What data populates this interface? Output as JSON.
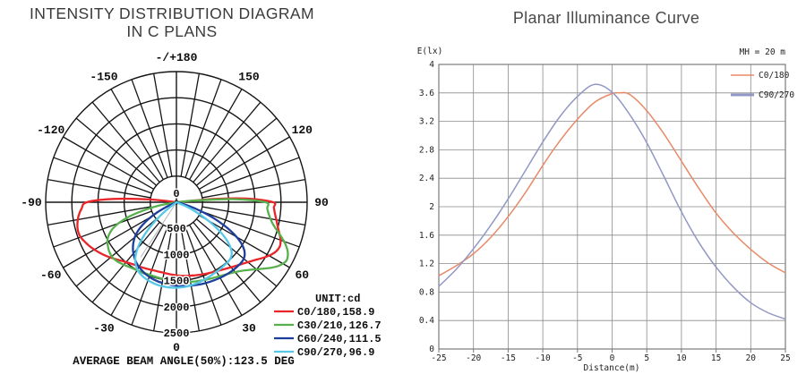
{
  "left_chart": {
    "title_line1": "INTENSITY DISTRIBUTION DIAGRAM",
    "title_line2": "IN C PLANS",
    "unit_label": "UNIT:cd",
    "average_beam_angle_label": "AVERAGE BEAM ANGLE(50%):123.5 DEG",
    "center_label": "0",
    "grid_color": "#151515"
  },
  "right_chart": {
    "grid_color": "#8a8a8a",
    "border_color": "#7a7a7a"
  },
  "chart_data": [
    {
      "type": "polar",
      "title": "INTENSITY DISTRIBUTION DIAGRAM IN C PLANS",
      "unit": "cd",
      "r_max": 2500,
      "radial_ticks": [
        0,
        500,
        1000,
        1500,
        2000,
        2500
      ],
      "angle_step_deg": 10,
      "average_beam_angle_50_deg": 123.5,
      "marker_line": {
        "angle": -33,
        "value": 1250,
        "color": "#b3b3b3"
      },
      "angle_ticks": [
        {
          "angle": 0,
          "label": "0"
        },
        {
          "angle": 30,
          "label": "30"
        },
        {
          "angle": 60,
          "label": "60"
        },
        {
          "angle": 90,
          "label": "90"
        },
        {
          "angle": 120,
          "label": "120"
        },
        {
          "angle": 150,
          "label": "150"
        },
        {
          "angle": 180,
          "label": "-/+180"
        },
        {
          "angle": -150,
          "label": "-150"
        },
        {
          "angle": -120,
          "label": "-120"
        },
        {
          "angle": -90,
          "label": "-90"
        },
        {
          "angle": -60,
          "label": "-60"
        },
        {
          "angle": -30,
          "label": "-30"
        }
      ],
      "series": [
        {
          "name": "C0/180",
          "beam_angle": "158.9",
          "color": "#e8262a",
          "points": [
            [
              -98,
              0
            ],
            [
              -96,
              500
            ],
            [
              -93,
              1200
            ],
            [
              -90,
              1712
            ],
            [
              -86,
              1820
            ],
            [
              -82,
              1890
            ],
            [
              -78,
              1935
            ],
            [
              -74,
              1960
            ],
            [
              -70,
              1950
            ],
            [
              -66,
              1900
            ],
            [
              -62,
              1845
            ],
            [
              -57,
              1765
            ],
            [
              -52,
              1680
            ],
            [
              -47,
              1595
            ],
            [
              -42,
              1520
            ],
            [
              -37,
              1465
            ],
            [
              -32,
              1430
            ],
            [
              -27,
              1405
            ],
            [
              -22,
              1385
            ],
            [
              -17,
              1372
            ],
            [
              -12,
              1370
            ],
            [
              -7,
              1378
            ],
            [
              -2,
              1392
            ],
            [
              3,
              1408
            ],
            [
              8,
              1422
            ],
            [
              13,
              1438
            ],
            [
              18,
              1458
            ],
            [
              23,
              1482
            ],
            [
              28,
              1512
            ],
            [
              33,
              1550
            ],
            [
              38,
              1600
            ],
            [
              43,
              1665
            ],
            [
              48,
              1745
            ],
            [
              53,
              1850
            ],
            [
              57,
              1960
            ],
            [
              61,
              2070
            ],
            [
              64,
              2130
            ],
            [
              67,
              2150
            ],
            [
              70,
              2120
            ],
            [
              73,
              2060
            ],
            [
              76,
              2000
            ],
            [
              80,
              1940
            ],
            [
              84,
              1890
            ],
            [
              87,
              1865
            ],
            [
              90,
              1850
            ],
            [
              93,
              1350
            ],
            [
              95,
              700
            ],
            [
              97,
              0
            ]
          ]
        },
        {
          "name": "C30/210",
          "beam_angle": "126.7",
          "color": "#56b14d",
          "points": [
            [
              -82,
              0
            ],
            [
              -79,
              350
            ],
            [
              -76,
              650
            ],
            [
              -73,
              950
            ],
            [
              -70,
              1180
            ],
            [
              -67,
              1340
            ],
            [
              -64,
              1440
            ],
            [
              -61,
              1510
            ],
            [
              -57,
              1560
            ],
            [
              -53,
              1600
            ],
            [
              -49,
              1615
            ],
            [
              -45,
              1600
            ],
            [
              -41,
              1570
            ],
            [
              -37,
              1540
            ],
            [
              -33,
              1515
            ],
            [
              -29,
              1498
            ],
            [
              -25,
              1488
            ],
            [
              -20,
              1480
            ],
            [
              -15,
              1482
            ],
            [
              -10,
              1488
            ],
            [
              -5,
              1500
            ],
            [
              0,
              1515
            ],
            [
              5,
              1530
            ],
            [
              10,
              1545
            ],
            [
              15,
              1562
            ],
            [
              20,
              1582
            ],
            [
              25,
              1605
            ],
            [
              30,
              1638
            ],
            [
              35,
              1680
            ],
            [
              40,
              1745
            ],
            [
              44,
              1820
            ],
            [
              48,
              1930
            ],
            [
              52,
              2070
            ],
            [
              55,
              2190
            ],
            [
              58,
              2300
            ],
            [
              61,
              2370
            ],
            [
              63,
              2380
            ],
            [
              66,
              2330
            ],
            [
              69,
              2230
            ],
            [
              72,
              2100
            ],
            [
              75,
              1970
            ],
            [
              78,
              1870
            ],
            [
              82,
              1790
            ],
            [
              86,
              1740
            ],
            [
              90,
              1705
            ],
            [
              93,
              1100
            ],
            [
              95,
              400
            ],
            [
              96,
              0
            ]
          ]
        },
        {
          "name": "C60/240",
          "beam_angle": "111.5",
          "color": "#1e3e9e",
          "points": [
            [
              -68,
              0
            ],
            [
              -65,
              200
            ],
            [
              -62,
              420
            ],
            [
              -59,
              620
            ],
            [
              -56,
              790
            ],
            [
              -53,
              930
            ],
            [
              -50,
              1040
            ],
            [
              -46,
              1150
            ],
            [
              -42,
              1240
            ],
            [
              -38,
              1315
            ],
            [
              -34,
              1380
            ],
            [
              -30,
              1430
            ],
            [
              -26,
              1470
            ],
            [
              -22,
              1505
            ],
            [
              -18,
              1532
            ],
            [
              -14,
              1552
            ],
            [
              -10,
              1568
            ],
            [
              -6,
              1580
            ],
            [
              -2,
              1590
            ],
            [
              2,
              1600
            ],
            [
              6,
              1610
            ],
            [
              10,
              1620
            ],
            [
              14,
              1630
            ],
            [
              18,
              1640
            ],
            [
              22,
              1650
            ],
            [
              26,
              1660
            ],
            [
              30,
              1670
            ],
            [
              34,
              1680
            ],
            [
              38,
              1688
            ],
            [
              42,
              1694
            ],
            [
              46,
              1695
            ],
            [
              49,
              1688
            ],
            [
              52,
              1655
            ],
            [
              55,
              1580
            ],
            [
              58,
              1450
            ],
            [
              61,
              1260
            ],
            [
              64,
              1020
            ],
            [
              67,
              760
            ],
            [
              70,
              500
            ],
            [
              73,
              280
            ],
            [
              76,
              100
            ],
            [
              78,
              0
            ]
          ]
        },
        {
          "name": "C90/270",
          "beam_angle": "96.9",
          "color": "#55c8e8",
          "points": [
            [
              -55,
              0
            ],
            [
              -52,
              250
            ],
            [
              -49,
              500
            ],
            [
              -46,
              750
            ],
            [
              -43,
              980
            ],
            [
              -40,
              1160
            ],
            [
              -37,
              1300
            ],
            [
              -34,
              1400
            ],
            [
              -31,
              1470
            ],
            [
              -28,
              1520
            ],
            [
              -24,
              1560
            ],
            [
              -20,
              1590
            ],
            [
              -16,
              1610
            ],
            [
              -12,
              1625
            ],
            [
              -8,
              1633
            ],
            [
              -4,
              1637
            ],
            [
              0,
              1636
            ],
            [
              4,
              1630
            ],
            [
              8,
              1620
            ],
            [
              12,
              1606
            ],
            [
              16,
              1590
            ],
            [
              20,
              1572
            ],
            [
              24,
              1555
            ],
            [
              28,
              1540
            ],
            [
              32,
              1528
            ],
            [
              36,
              1518
            ],
            [
              40,
              1510
            ],
            [
              43,
              1498
            ],
            [
              46,
              1465
            ],
            [
              49,
              1390
            ],
            [
              52,
              1260
            ],
            [
              55,
              1080
            ],
            [
              58,
              860
            ],
            [
              61,
              620
            ],
            [
              64,
              390
            ],
            [
              67,
              200
            ],
            [
              70,
              0
            ]
          ]
        }
      ]
    },
    {
      "type": "line",
      "title": "Planar Illuminance Curve",
      "xlabel": "Distance(m)",
      "ylabel": "E(lx)",
      "annotation": "MH = 20 m",
      "xlim": [
        -25,
        25
      ],
      "ylim": [
        0,
        4
      ],
      "x_ticks": [
        -25,
        -20,
        -15,
        -10,
        -5,
        0,
        5,
        10,
        15,
        20,
        25
      ],
      "y_ticks": [
        0,
        0.4,
        0.8,
        1.2,
        1.6,
        2,
        2.4,
        2.8,
        3.2,
        3.6,
        4
      ],
      "grid": true,
      "legend_position": "top-right",
      "series": [
        {
          "name": "C0/180",
          "color": "#e78a68",
          "x": [
            -25,
            -22.5,
            -20,
            -17.5,
            -15,
            -12.5,
            -10,
            -7.5,
            -5,
            -2.5,
            0,
            1,
            2.5,
            5,
            7.5,
            10,
            12.5,
            15,
            17.5,
            20,
            22.5,
            25
          ],
          "y": [
            1.03,
            1.17,
            1.34,
            1.57,
            1.86,
            2.2,
            2.58,
            2.93,
            3.23,
            3.47,
            3.59,
            3.6,
            3.58,
            3.35,
            3.02,
            2.64,
            2.26,
            1.91,
            1.63,
            1.4,
            1.21,
            1.07
          ]
        },
        {
          "name": "C90/270",
          "color": "#9298c5",
          "x": [
            -25,
            -22.5,
            -20,
            -17.5,
            -15,
            -12.5,
            -10,
            -7.5,
            -5,
            -2.5,
            0,
            2.5,
            5,
            7.5,
            10,
            12.5,
            15,
            17.5,
            20,
            22.5,
            25
          ],
          "y": [
            0.88,
            1.12,
            1.41,
            1.74,
            2.11,
            2.51,
            2.91,
            3.27,
            3.55,
            3.72,
            3.61,
            3.3,
            2.9,
            2.42,
            1.93,
            1.5,
            1.15,
            0.87,
            0.65,
            0.51,
            0.42
          ]
        }
      ]
    }
  ]
}
